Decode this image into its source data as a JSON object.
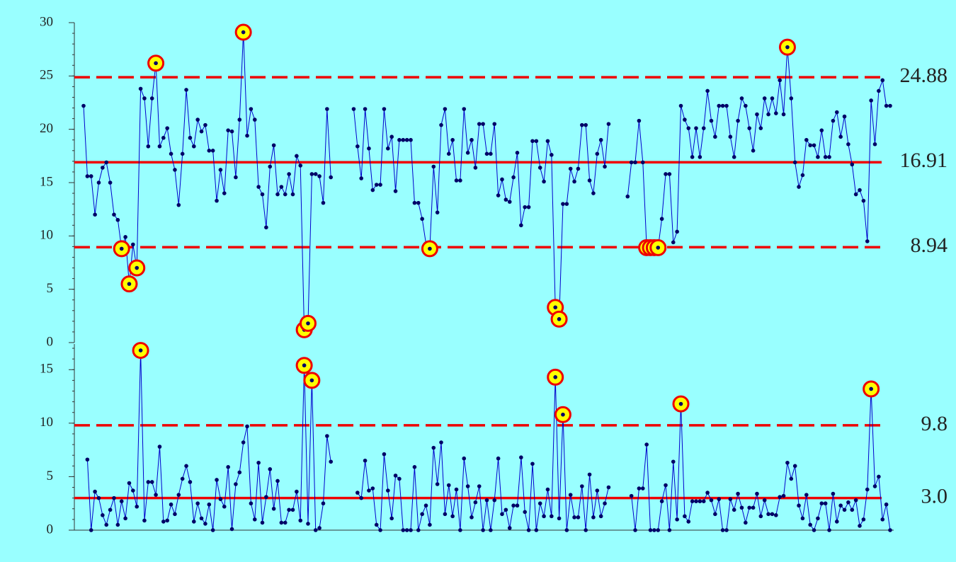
{
  "chart_data": [
    {
      "type": "line",
      "values": [
        22.2,
        15.6,
        15.6,
        12.0,
        15.0,
        16.4,
        16.9,
        15.0,
        12.0,
        11.5,
        8.8,
        9.9,
        5.5,
        9.2,
        7.0,
        23.8,
        22.9,
        18.4,
        22.9,
        26.2,
        18.4,
        19.2,
        20.1,
        17.7,
        16.2,
        12.9,
        17.7,
        23.7,
        19.2,
        18.4,
        20.9,
        19.8,
        20.4,
        18.0,
        18.0,
        13.3,
        16.2,
        14.0,
        19.9,
        19.8,
        15.5,
        20.9,
        29.1,
        19.4,
        21.9,
        20.9,
        14.6,
        13.9,
        10.8,
        16.5,
        18.5,
        13.9,
        14.6,
        13.9,
        15.8,
        13.9,
        17.5,
        16.6,
        1.2,
        1.8,
        15.8,
        15.8,
        15.6,
        13.1,
        21.9,
        15.5,
        null,
        null,
        null,
        null,
        null,
        21.9,
        18.4,
        15.4,
        21.9,
        18.2,
        14.3,
        14.8,
        14.8,
        21.9,
        18.2,
        19.3,
        14.2,
        19.0,
        19.0,
        19.0,
        19.0,
        13.1,
        13.1,
        11.6,
        9.3,
        8.8,
        16.5,
        12.2,
        20.4,
        21.9,
        17.7,
        19.0,
        15.2,
        15.2,
        21.9,
        17.8,
        19.0,
        16.4,
        20.5,
        20.5,
        17.7,
        17.7,
        20.5,
        13.8,
        15.3,
        13.4,
        13.2,
        15.5,
        17.8,
        11.0,
        12.7,
        12.7,
        18.9,
        18.9,
        16.4,
        15.1,
        18.9,
        17.6,
        3.3,
        2.2,
        13.0,
        13.0,
        16.3,
        15.1,
        16.3,
        20.4,
        20.4,
        15.2,
        14.0,
        17.7,
        19.0,
        16.5,
        20.5,
        null,
        null,
        null,
        null,
        13.7,
        16.9,
        16.9,
        20.8,
        16.9,
        8.9,
        8.9,
        8.9,
        8.9,
        11.6,
        15.8,
        15.8,
        9.4,
        10.4,
        22.2,
        20.9,
        20.1,
        17.4,
        20.1,
        17.4,
        20.1,
        23.6,
        20.8,
        19.3,
        22.2,
        22.2,
        22.2,
        19.3,
        17.4,
        20.8,
        22.9,
        22.2,
        20.1,
        18.0,
        21.4,
        20.1,
        22.9,
        21.4,
        22.9,
        21.5,
        24.6,
        21.4,
        27.7,
        22.9,
        16.9,
        14.6,
        15.7,
        19.0,
        18.5,
        18.5,
        17.4,
        19.9,
        17.4,
        17.4,
        20.8,
        21.6,
        19.3,
        21.2,
        18.6,
        16.7,
        13.9,
        14.3,
        13.3,
        9.5,
        22.7,
        18.6,
        23.6,
        24.6,
        22.2,
        22.2
      ],
      "ylim": [
        0,
        30
      ],
      "yticks": [
        0,
        5,
        10,
        15,
        20,
        25,
        30
      ],
      "control_lines": [
        {
          "value": 24.88,
          "style": "dashed",
          "role": "upper"
        },
        {
          "value": 16.91,
          "style": "solid",
          "role": "center"
        },
        {
          "value": 8.94,
          "style": "dashed",
          "role": "lower"
        }
      ],
      "line_color": "#0000cc",
      "point_color": "#000066",
      "limit_color": "#ee0000",
      "highlight_fill": "#ffff00",
      "highlight_stroke": "#ee0000"
    },
    {
      "type": "line",
      "values": [
        null,
        6.6,
        0,
        3.6,
        3.0,
        1.4,
        0.5,
        1.9,
        3.0,
        0.5,
        2.7,
        1.1,
        4.4,
        3.7,
        2.2,
        16.8,
        0.9,
        4.5,
        4.5,
        3.3,
        7.8,
        0.8,
        0.9,
        2.4,
        1.5,
        3.3,
        4.8,
        6.0,
        4.5,
        0.8,
        2.5,
        1.1,
        0.6,
        2.4,
        0,
        4.7,
        2.9,
        2.2,
        5.9,
        0.1,
        4.3,
        5.4,
        8.2,
        9.7,
        2.5,
        1.0,
        6.3,
        0.7,
        3.1,
        5.7,
        2.0,
        4.6,
        0.7,
        0.7,
        1.9,
        1.9,
        3.6,
        0.9,
        15.4,
        0.6,
        14.0,
        0,
        0.2,
        2.5,
        8.8,
        6.4,
        null,
        null,
        null,
        null,
        null,
        null,
        3.5,
        3.0,
        6.5,
        3.7,
        3.9,
        0.5,
        0,
        7.1,
        3.7,
        1.1,
        5.1,
        4.8,
        0,
        0,
        0,
        5.9,
        0,
        1.5,
        2.3,
        0.5,
        7.7,
        4.3,
        8.2,
        1.5,
        4.2,
        1.3,
        3.8,
        0,
        6.7,
        4.1,
        1.2,
        2.6,
        4.1,
        0,
        2.8,
        0,
        2.8,
        6.7,
        1.5,
        1.9,
        0.2,
        2.3,
        2.3,
        6.8,
        1.7,
        0,
        6.2,
        0,
        2.5,
        1.3,
        3.8,
        1.3,
        14.3,
        1.1,
        10.8,
        0,
        3.3,
        1.2,
        1.2,
        4.1,
        0,
        5.2,
        1.2,
        3.7,
        1.3,
        2.5,
        4.0,
        null,
        null,
        null,
        null,
        null,
        3.2,
        0,
        3.9,
        3.9,
        8.0,
        0,
        0,
        0,
        2.7,
        4.2,
        0,
        6.4,
        1.0,
        11.8,
        1.3,
        0.8,
        2.7,
        2.7,
        2.7,
        2.7,
        3.5,
        2.8,
        1.5,
        2.9,
        0,
        0,
        2.9,
        1.9,
        3.4,
        2.1,
        0.7,
        2.1,
        2.1,
        3.4,
        1.3,
        2.8,
        1.5,
        1.5,
        1.4,
        3.1,
        3.2,
        6.3,
        4.8,
        6.0,
        2.3,
        1.1,
        3.3,
        0.5,
        0,
        1.1,
        2.5,
        2.5,
        0,
        3.4,
        0.8,
        2.3,
        1.9,
        2.6,
        1.9,
        2.8,
        0.4,
        1.0,
        3.8,
        13.2,
        4.1,
        5.0,
        1.0,
        2.4,
        0
      ],
      "ylim": [
        0,
        17.4
      ],
      "yticks": [
        0,
        5,
        10,
        15
      ],
      "control_lines": [
        {
          "value": 9.8,
          "style": "dashed",
          "role": "upper"
        },
        {
          "value": {
            "value": 3.0,
            "label": "3.0"
          },
          "style": "solid",
          "role": "center"
        }
      ],
      "line_color": "#0000cc",
      "point_color": "#000066",
      "limit_color": "#ee0000",
      "highlight_fill": "#ffff00",
      "highlight_stroke": "#ee0000"
    }
  ]
}
